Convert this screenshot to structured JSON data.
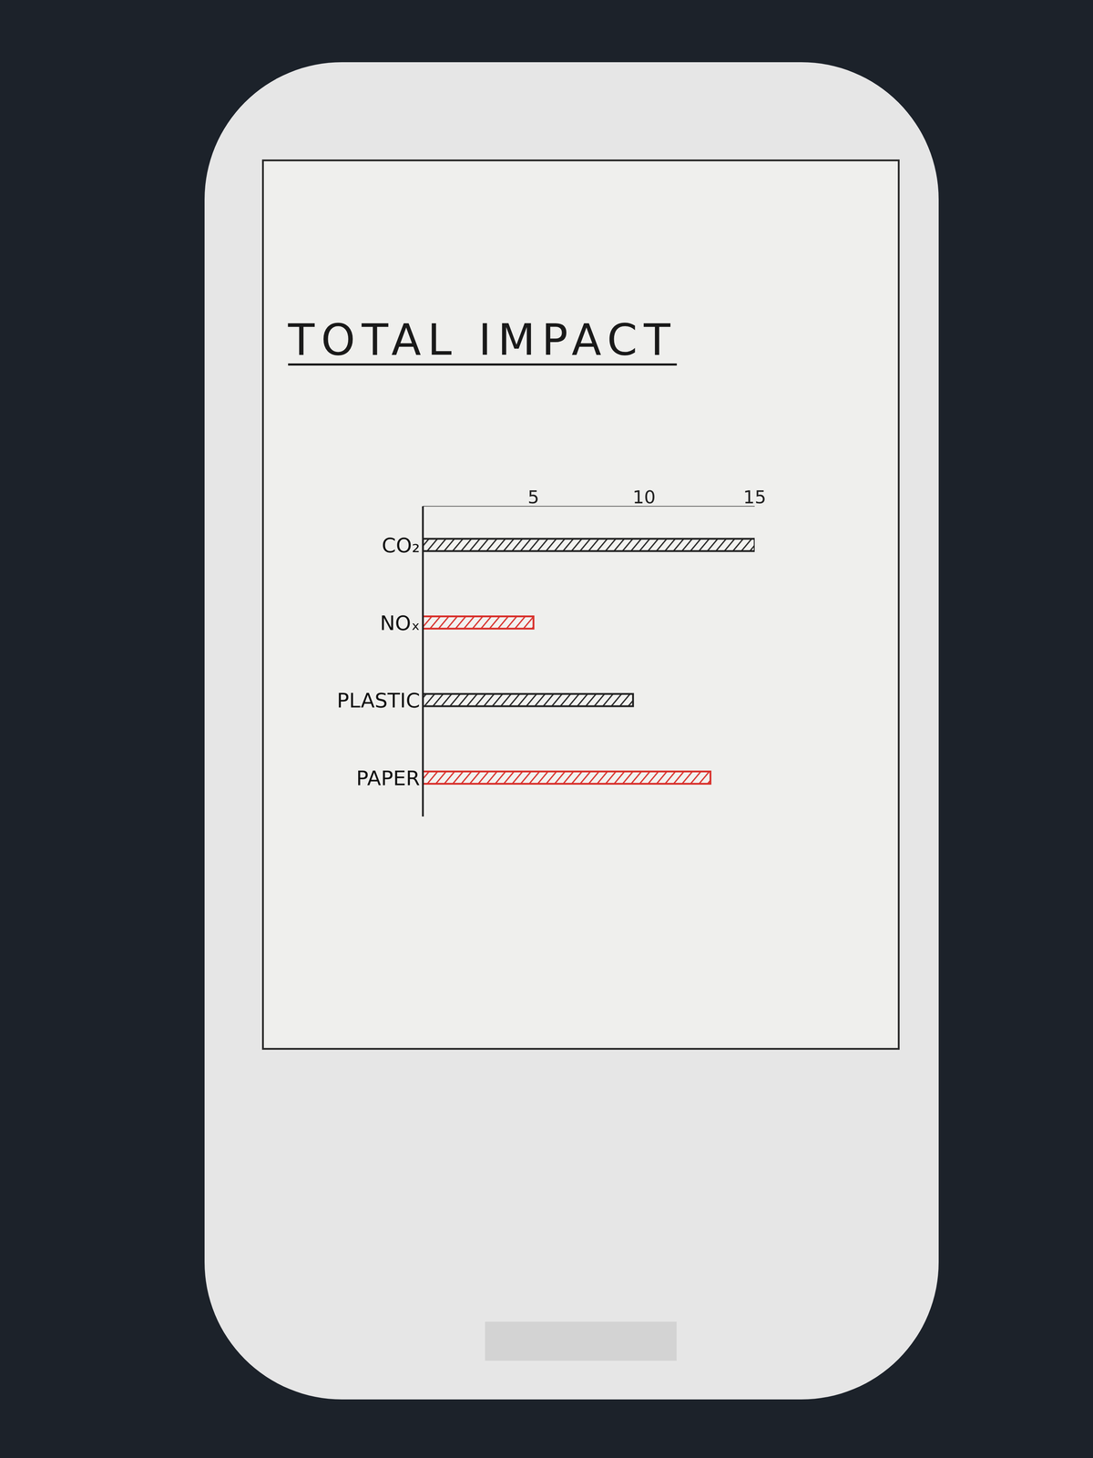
{
  "chart_data": {
    "type": "bar",
    "title": "TOTAL IMPACT",
    "orientation": "horizontal",
    "categories": [
      "CO₂",
      "NOₓ",
      "PLASTIC",
      "PAPER"
    ],
    "values": [
      15,
      5,
      9.5,
      13
    ],
    "colors": [
      "#222222",
      "#d8302b",
      "#222222",
      "#d8302b"
    ],
    "xlim": [
      0,
      15
    ],
    "xticks": [
      5,
      10,
      15
    ],
    "grid": false
  }
}
